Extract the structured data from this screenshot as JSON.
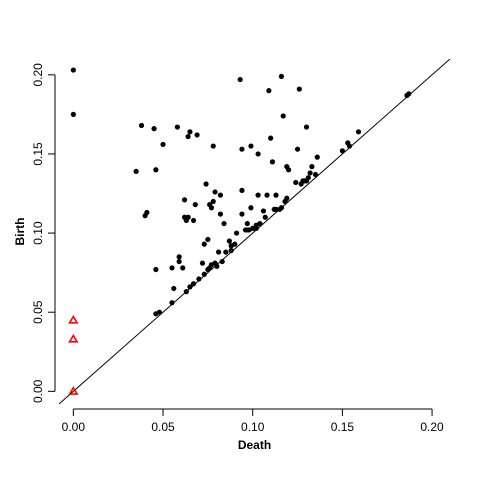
{
  "chart_data": {
    "type": "scatter",
    "title": "",
    "xlabel": "Death",
    "ylabel": "Birth",
    "xlim": [
      -0.008,
      0.21
    ],
    "ylim": [
      -0.008,
      0.21
    ],
    "x_ticks": [
      0.0,
      0.05,
      0.1,
      0.15,
      0.2
    ],
    "x_tick_labels": [
      "0.00",
      "0.05",
      "0.10",
      "0.15",
      "0.20"
    ],
    "y_ticks": [
      0.0,
      0.05,
      0.1,
      0.15,
      0.2
    ],
    "y_tick_labels": [
      "0.00",
      "0.05",
      "0.10",
      "0.15",
      "0.20"
    ],
    "grid": false,
    "legend": "none",
    "diagonal": {
      "slope": 1,
      "intercept": 0,
      "color": "#000000"
    },
    "series": [
      {
        "marker": "dot",
        "color": "#000000",
        "points": [
          [
            0.0,
            0.203
          ],
          [
            0.0,
            0.175
          ],
          [
            0.035,
            0.139
          ],
          [
            0.038,
            0.168
          ],
          [
            0.04,
            0.111
          ],
          [
            0.041,
            0.113
          ],
          [
            0.045,
            0.166
          ],
          [
            0.046,
            0.14
          ],
          [
            0.046,
            0.077
          ],
          [
            0.046,
            0.049
          ],
          [
            0.048,
            0.05
          ],
          [
            0.05,
            0.156
          ],
          [
            0.055,
            0.078
          ],
          [
            0.055,
            0.056
          ],
          [
            0.056,
            0.065
          ],
          [
            0.058,
            0.167
          ],
          [
            0.059,
            0.082
          ],
          [
            0.059,
            0.085
          ],
          [
            0.061,
            0.078
          ],
          [
            0.062,
            0.121
          ],
          [
            0.062,
            0.11
          ],
          [
            0.063,
            0.063
          ],
          [
            0.063,
            0.108
          ],
          [
            0.064,
            0.11
          ],
          [
            0.064,
            0.161
          ],
          [
            0.065,
            0.066
          ],
          [
            0.065,
            0.164
          ],
          [
            0.067,
            0.108
          ],
          [
            0.067,
            0.068
          ],
          [
            0.068,
            0.118
          ],
          [
            0.069,
            0.162
          ],
          [
            0.07,
            0.071
          ],
          [
            0.072,
            0.081
          ],
          [
            0.073,
            0.093
          ],
          [
            0.073,
            0.074
          ],
          [
            0.074,
            0.131
          ],
          [
            0.075,
            0.077
          ],
          [
            0.075,
            0.096
          ],
          [
            0.076,
            0.078
          ],
          [
            0.076,
            0.118
          ],
          [
            0.077,
            0.116
          ],
          [
            0.077,
            0.08
          ],
          [
            0.078,
            0.12
          ],
          [
            0.078,
            0.155
          ],
          [
            0.079,
            0.081
          ],
          [
            0.079,
            0.126
          ],
          [
            0.08,
            0.079
          ],
          [
            0.081,
            0.088
          ],
          [
            0.082,
            0.112
          ],
          [
            0.082,
            0.124
          ],
          [
            0.083,
            0.082
          ],
          [
            0.084,
            0.106
          ],
          [
            0.085,
            0.088
          ],
          [
            0.087,
            0.095
          ],
          [
            0.088,
            0.092
          ],
          [
            0.088,
            0.089
          ],
          [
            0.09,
            0.093
          ],
          [
            0.091,
            0.1
          ],
          [
            0.093,
            0.197
          ],
          [
            0.094,
            0.127
          ],
          [
            0.094,
            0.112
          ],
          [
            0.094,
            0.153
          ],
          [
            0.096,
            0.102
          ],
          [
            0.097,
            0.102
          ],
          [
            0.097,
            0.106
          ],
          [
            0.098,
            0.102
          ],
          [
            0.099,
            0.155
          ],
          [
            0.099,
            0.116
          ],
          [
            0.1,
            0.103
          ],
          [
            0.101,
            0.103
          ],
          [
            0.102,
            0.103
          ],
          [
            0.102,
            0.105
          ],
          [
            0.103,
            0.124
          ],
          [
            0.103,
            0.15
          ],
          [
            0.104,
            0.106
          ],
          [
            0.106,
            0.114
          ],
          [
            0.107,
            0.11
          ],
          [
            0.108,
            0.124
          ],
          [
            0.109,
            0.19
          ],
          [
            0.11,
            0.16
          ],
          [
            0.111,
            0.145
          ],
          [
            0.112,
            0.115
          ],
          [
            0.113,
            0.115
          ],
          [
            0.113,
            0.124
          ],
          [
            0.115,
            0.115
          ],
          [
            0.116,
            0.116
          ],
          [
            0.116,
            0.199
          ],
          [
            0.117,
            0.174
          ],
          [
            0.118,
            0.12
          ],
          [
            0.119,
            0.142
          ],
          [
            0.119,
            0.122
          ],
          [
            0.12,
            0.14
          ],
          [
            0.124,
            0.132
          ],
          [
            0.125,
            0.153
          ],
          [
            0.126,
            0.191
          ],
          [
            0.127,
            0.131
          ],
          [
            0.128,
            0.133
          ],
          [
            0.129,
            0.133
          ],
          [
            0.13,
            0.133
          ],
          [
            0.13,
            0.167
          ],
          [
            0.131,
            0.135
          ],
          [
            0.132,
            0.138
          ],
          [
            0.133,
            0.142
          ],
          [
            0.135,
            0.137
          ],
          [
            0.136,
            0.148
          ],
          [
            0.15,
            0.152
          ],
          [
            0.153,
            0.157
          ],
          [
            0.154,
            0.155
          ],
          [
            0.159,
            0.164
          ],
          [
            0.186,
            0.187
          ],
          [
            0.187,
            0.188
          ]
        ]
      },
      {
        "marker": "triangle-open",
        "color": "#ff0000",
        "points": [
          [
            0.0,
            0.045
          ],
          [
            0.0,
            0.033
          ],
          [
            0.0,
            0.0
          ]
        ]
      }
    ]
  }
}
